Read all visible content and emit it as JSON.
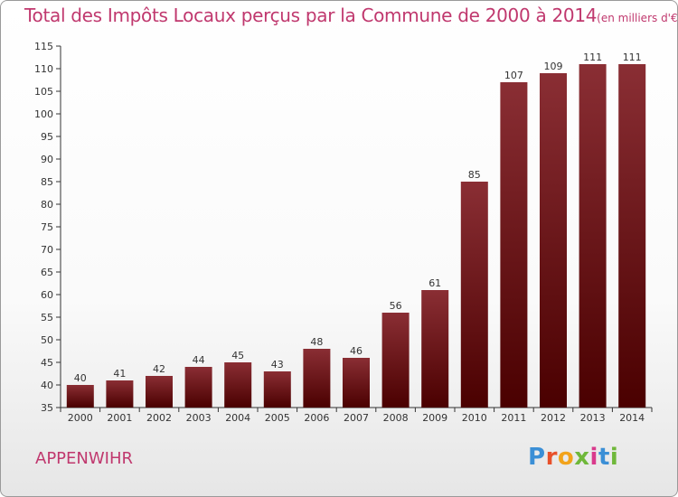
{
  "chart_data": {
    "type": "bar",
    "title": "Total des Impôts Locaux perçus par la Commune de 2000 à 2014",
    "unit_label": "(en milliers d'€)",
    "xlabel": "",
    "ylabel": "",
    "categories": [
      "2000",
      "2001",
      "2002",
      "2003",
      "2004",
      "2005",
      "2006",
      "2007",
      "2008",
      "2009",
      "2010",
      "2011",
      "2012",
      "2013",
      "2014"
    ],
    "values": [
      40,
      41,
      42,
      44,
      45,
      43,
      48,
      46,
      56,
      61,
      85,
      107,
      109,
      111,
      111
    ],
    "ylim": [
      35,
      115
    ],
    "yticks": [
      35,
      40,
      45,
      50,
      55,
      60,
      65,
      70,
      75,
      80,
      85,
      90,
      95,
      100,
      105,
      110,
      115
    ],
    "grid": false,
    "bar_color_top": "#8a2e34",
    "bar_color_bottom": "#4a0000"
  },
  "commune": "APPENWIHR",
  "logo": {
    "letters": [
      "P",
      "r",
      "o",
      "x",
      "i",
      "t",
      "i"
    ],
    "colors": [
      "#3b8fd6",
      "#e8502a",
      "#f2a31b",
      "#6fb83a",
      "#d93a8c",
      "#3b8fd6",
      "#6fb83a"
    ]
  },
  "colors": {
    "title": "#c0386e",
    "axis": "#333333"
  }
}
